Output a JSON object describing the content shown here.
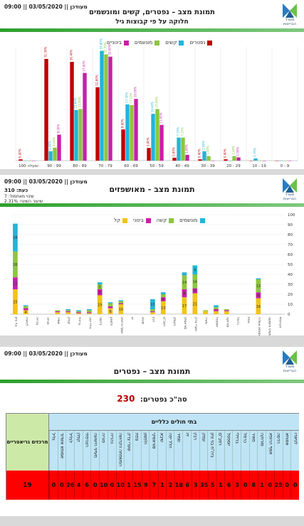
{
  "timestamp": "09:00 || 03/05/2020 || מעודכן",
  "logo_text": "משרד הבריאות",
  "panel1": {
    "title": "תמונת מצב – נפטרים, קשים ומונשמים",
    "subtitle": "חלוקה על פי קבוצות גיל",
    "legend": [
      {
        "label": "נפטרים",
        "color": "#c00000"
      },
      {
        "label": "קשים",
        "color": "#21b5d8"
      },
      {
        "label": "מונשמים",
        "color": "#8cc63f"
      },
      {
        "label": "בינוניים",
        "color": "#c81fa8"
      }
    ]
  },
  "panel2": {
    "title": "תמונת מצב - מאושפזים",
    "kpi_now": "כעת: 310",
    "kpi_change": "שינוי מאתמול: 7",
    "kpi_rate": "שיעור השינוי: 2.31%",
    "legend": [
      {
        "label": "מונשמים",
        "color": "#21b5d8"
      },
      {
        "label": "קשה",
        "color": "#8cc63f"
      },
      {
        "label": "בינוני",
        "color": "#c81fa8"
      },
      {
        "label": "קל",
        "color": "#f0c419"
      }
    ]
  },
  "panel3": {
    "title": "תמונת מצב – נפטרים",
    "total_label": "סה\"כ נפטרים:",
    "total_value": "230",
    "general_header": "בתי חולים כלליים",
    "geriatric_header": "מרכזים גריאטריים",
    "geriatric_value": "19",
    "hospitals": [
      "לניאדו",
      "אסותא",
      "הדסה",
      "אסף הרופא",
      "סורוקה",
      "מאיר",
      "כרמל",
      "ברזילי",
      "יוספטל",
      "רמב\"ם",
      "ביה\"ח בני ציון",
      "עמק",
      "רבין",
      "זיו",
      "שמיר",
      "הלל יפה",
      "שיבא",
      "סוראסקי",
      "ולפסון",
      "צפת",
      "שערי צדק",
      "המשפחה הקדושה",
      "נהריה",
      "פוריה",
      "מעייני הישועה",
      "הצרפתי",
      "קפלן",
      "לגליל",
      "אסותא אשדוד",
      "גליל"
    ],
    "values": [
      "0",
      "0",
      "25",
      "0",
      "1",
      "8",
      "0",
      "3",
      "6",
      "1",
      "5",
      "35",
      "3",
      "6",
      "18",
      "2",
      "1",
      "7",
      "9",
      "15",
      "1",
      "10",
      "0",
      "10",
      "0",
      "6",
      "4",
      "26",
      "0",
      "0"
    ]
  },
  "chart_data": [
    {
      "type": "bar",
      "title": "תמונת מצב – נפטרים, קשים ומונשמים",
      "subtitle": "חלוקה על פי קבוצות גיל",
      "categories": [
        "0 - 9",
        "10 - 19",
        "20 - 29",
        "30 - 39",
        "40 - 49",
        "50 - 59",
        "60 - 69",
        "70 - 79",
        "80 - 89",
        "90 - 99",
        "100 ומעלה"
      ],
      "series": [
        {
          "name": "בינוניים",
          "color": "#c81fa8",
          "values": [
            0,
            0,
            1.0,
            0,
            1.8,
            11.0,
            19.0,
            32.0,
            27.0,
            8.0,
            0
          ]
        },
        {
          "name": "מונשמים",
          "color": "#8cc63f",
          "values": [
            0,
            0,
            1.4,
            1.4,
            7.1,
            15.9,
            17.1,
            32.7,
            15.9,
            4.0,
            0
          ]
        },
        {
          "name": "קשים",
          "color": "#21b5d8",
          "values": [
            0,
            0.7,
            0,
            2.9,
            7.1,
            14.4,
            17.3,
            33.8,
            15.6,
            2.9,
            0
          ]
        },
        {
          "name": "נפטרים",
          "color": "#c00000",
          "values": [
            0,
            0,
            0.4,
            0.4,
            0.9,
            3.9,
            9.6,
            22.6,
            30.4,
            31.3,
            0.4
          ]
        }
      ],
      "ylim": [
        0,
        35
      ]
    },
    {
      "type": "bar",
      "stacked": true,
      "title": "תמונת מצב - מאושפזים",
      "categories": [
        "בני ציון",
        "לניאדו",
        "נהריה",
        "פוריה",
        "שמיר",
        "קפלן",
        "ברזילי",
        "הלל יפה",
        "הדסה",
        "ולפסון",
        "אסף הרופא",
        "זיו",
        "שיבא",
        "רבין",
        "רמב\"ם",
        "העמק",
        "סוראסקי",
        "שערי צדק",
        "מאיר",
        "יוספטל",
        "סורוקה",
        "כרמל",
        "צפת",
        "אסותא אשדוד",
        "מעייני הישועה",
        "הצרפתי"
      ],
      "series": [
        {
          "name": "קל",
          "color": "#f0c419",
          "values": [
            25,
            4,
            0,
            0,
            2,
            2,
            1,
            1,
            19,
            6,
            10,
            0,
            0,
            2,
            13,
            0,
            17,
            21,
            3,
            3,
            3,
            0,
            0,
            16,
            0,
            0
          ]
        },
        {
          "name": "בינוני",
          "color": "#c81fa8",
          "values": [
            12,
            2,
            0,
            0,
            1,
            1,
            1,
            1,
            6,
            2,
            1,
            0,
            0,
            1,
            4,
            0,
            8,
            5,
            0,
            2,
            1,
            0,
            0,
            6,
            0,
            0
          ]
        },
        {
          "name": "קשה",
          "color": "#8cc63f",
          "values": [
            26,
            2,
            0,
            0,
            1,
            1,
            1,
            2,
            5,
            3,
            2,
            0,
            0,
            2,
            3,
            0,
            14,
            14,
            1,
            2,
            1,
            0,
            0,
            13,
            0,
            0
          ]
        },
        {
          "name": "מונשמים",
          "color": "#21b5d8",
          "values": [
            28,
            1,
            0,
            0,
            0,
            1,
            1,
            1,
            2,
            1,
            1,
            0,
            0,
            10,
            2,
            0,
            3,
            9,
            0,
            2,
            0,
            0,
            0,
            1,
            0,
            0
          ]
        }
      ],
      "ylim": [
        0,
        100
      ],
      "yticks": [
        0,
        10,
        20,
        30,
        40,
        50,
        60,
        70,
        80,
        90,
        100
      ]
    }
  ]
}
